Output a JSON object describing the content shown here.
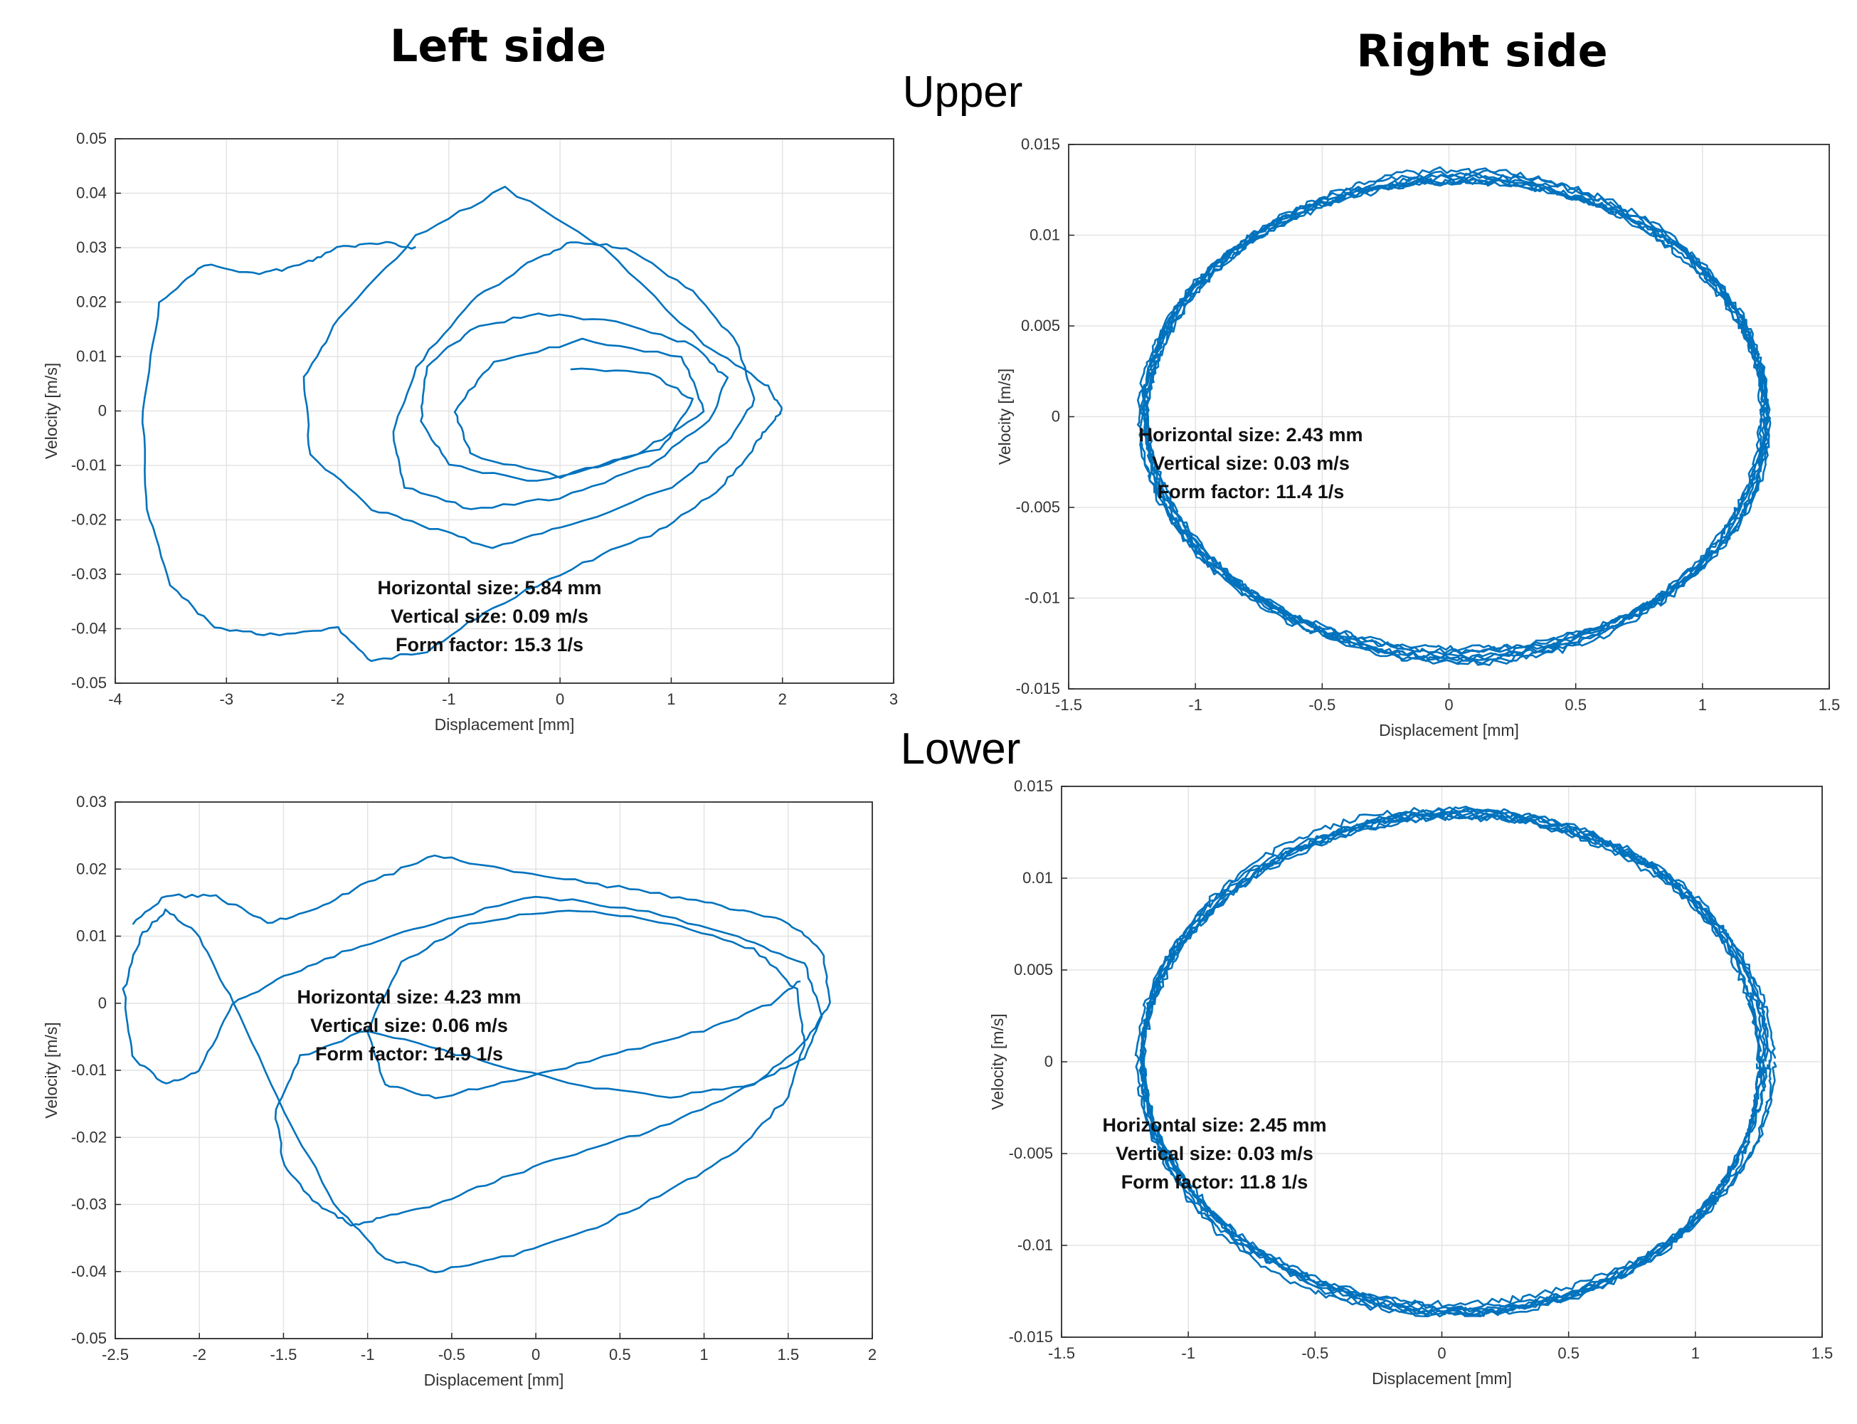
{
  "figure": {
    "left_title": "Left side",
    "right_title": "Right side",
    "upper_label": "Upper",
    "lower_label": "Lower"
  },
  "colors": {
    "trace": "#0072BD",
    "grid": "#e3e3e3",
    "axis": "#262626"
  },
  "chart_data": [
    {
      "id": "left-upper",
      "type": "line",
      "title": "",
      "xlabel": "Displacement [mm]",
      "ylabel": "Velocity [m/s]",
      "xlim": [
        -4,
        3
      ],
      "ylim": [
        -0.05,
        0.05
      ],
      "xticks": [
        -4,
        -3,
        -2,
        -1,
        0,
        1,
        2,
        3
      ],
      "yticks": [
        -0.05,
        -0.04,
        -0.03,
        -0.02,
        -0.01,
        0,
        0.01,
        0.02,
        0.03,
        0.04,
        0.05
      ],
      "xtick_labels": [
        "-4",
        "-3",
        "-2",
        "-1",
        "0",
        "1",
        "2",
        "3"
      ],
      "ytick_labels": [
        "-0.05",
        "-0.04",
        "-0.03",
        "-0.02",
        "-0.01",
        "0",
        "0.01",
        "0.02",
        "0.03",
        "0.04",
        "0.05"
      ],
      "grid": true,
      "annotation": [
        "Horizontal size: 5.84 mm",
        "Vertical size: 0.09 m/s",
        "Form factor: 15.3 1/s"
      ],
      "series": [
        {
          "name": "phase trajectory",
          "x": [
            -1.3,
            -1.6,
            -2.0,
            -2.3,
            -2.7,
            -3.2,
            -3.6,
            -3.75,
            -3.72,
            -3.5,
            -3.1,
            -2.6,
            -2.0,
            -1.7,
            -1.2,
            -0.6,
            0.2,
            0.9,
            1.4,
            1.7,
            1.9,
            2.0,
            1.85,
            1.3,
            0.4,
            -0.5,
            -1.3,
            -2.0,
            -2.3,
            -2.25,
            -1.7,
            -1.1,
            -0.6,
            0.1,
            1.0,
            1.5,
            1.75,
            1.6,
            1.2,
            0.6,
            0.1,
            -0.3,
            -0.8,
            -1.3,
            -1.5,
            -1.4,
            -0.8,
            0.0,
            0.8,
            1.35,
            1.5,
            1.2,
            0.6,
            -0.2,
            -0.8,
            -1.2,
            -1.25,
            -1.0,
            -0.2,
            0.7,
            1.3,
            1.1,
            0.2,
            -0.6,
            -0.95,
            -0.8,
            0.0,
            0.9,
            1.2,
            0.8,
            0.0
          ],
          "y": [
            0.03,
            0.031,
            0.03,
            0.027,
            0.025,
            0.027,
            0.02,
            0.0,
            -0.018,
            -0.032,
            -0.04,
            -0.041,
            -0.04,
            -0.046,
            -0.044,
            -0.036,
            -0.028,
            -0.022,
            -0.015,
            -0.008,
            -0.002,
            0.0,
            0.005,
            0.012,
            0.03,
            0.041,
            0.032,
            0.017,
            0.006,
            -0.008,
            -0.018,
            -0.022,
            -0.025,
            -0.021,
            -0.014,
            -0.006,
            0.002,
            0.012,
            0.022,
            0.03,
            0.031,
            0.027,
            0.02,
            0.008,
            -0.004,
            -0.014,
            -0.018,
            -0.016,
            -0.01,
            -0.002,
            0.006,
            0.012,
            0.016,
            0.018,
            0.015,
            0.008,
            -0.002,
            -0.01,
            -0.013,
            -0.008,
            0.0,
            0.01,
            0.013,
            0.009,
            0.0,
            -0.008,
            -0.012,
            -0.007,
            0.002,
            0.007,
            0.008
          ]
        }
      ]
    },
    {
      "id": "right-upper",
      "type": "line",
      "title": "",
      "xlabel": "Displacement [mm]",
      "ylabel": "Velocity [m/s]",
      "xlim": [
        -1.5,
        1.5
      ],
      "ylim": [
        -0.015,
        0.015
      ],
      "xticks": [
        -1.5,
        -1,
        -0.5,
        0,
        0.5,
        1,
        1.5
      ],
      "yticks": [
        -0.015,
        -0.01,
        -0.005,
        0,
        0.005,
        0.01,
        0.015
      ],
      "xtick_labels": [
        "-1.5",
        "-1",
        "-0.5",
        "0",
        "0.5",
        "1",
        "1.5"
      ],
      "ytick_labels": [
        "-0.015",
        "-0.01",
        "-0.005",
        "0",
        "0.005",
        "0.01",
        "0.015"
      ],
      "grid": true,
      "annotation": [
        "Horizontal size: 2.43 mm",
        "Vertical size: 0.03 m/s",
        "Form factor: 11.4 1/s"
      ],
      "ellipse": {
        "cx": 0.03,
        "cy": 0.0,
        "rx": 1.22,
        "ry": 0.0132,
        "loops": 8
      }
    },
    {
      "id": "left-lower",
      "type": "line",
      "title": "",
      "xlabel": "Displacement [mm]",
      "ylabel": "Velocity [m/s]",
      "xlim": [
        -2.5,
        2
      ],
      "ylim": [
        -0.05,
        0.03
      ],
      "xticks": [
        -2.5,
        -2,
        -1.5,
        -1,
        -0.5,
        0,
        0.5,
        1,
        1.5,
        2
      ],
      "yticks": [
        -0.05,
        -0.04,
        -0.03,
        -0.02,
        -0.01,
        0,
        0.01,
        0.02,
        0.03
      ],
      "xtick_labels": [
        "-2.5",
        "-2",
        "-1.5",
        "-1",
        "-0.5",
        "0",
        "0.5",
        "1",
        "1.5",
        "2"
      ],
      "ytick_labels": [
        "-0.05",
        "-0.04",
        "-0.03",
        "-0.02",
        "-0.01",
        "0",
        "0.01",
        "0.02",
        "0.03"
      ],
      "grid": true,
      "annotation": [
        "Horizontal size: 4.23 mm",
        "Vertical size: 0.06 m/s",
        "Form factor: 14.9 1/s"
      ],
      "series": [
        {
          "name": "phase trajectory",
          "x": [
            -2.4,
            -2.2,
            -1.9,
            -1.6,
            -1.3,
            -1.0,
            -0.6,
            -0.2,
            0.3,
            0.8,
            1.2,
            1.5,
            1.7,
            1.75,
            1.6,
            1.3,
            0.8,
            0.3,
            -0.2,
            -0.6,
            -0.9,
            -1.1,
            -1.3,
            -1.5,
            -1.55,
            -1.4,
            -1.0,
            -0.4,
            0.2,
            0.8,
            1.3,
            1.6,
            1.7,
            1.6,
            1.2,
            0.6,
            0.0,
            -0.6,
            -1.1,
            -1.5,
            -1.8,
            -2.0,
            -2.2,
            -2.4,
            -2.45,
            -2.35,
            -2.2,
            -2.0,
            -1.8,
            -1.5,
            -1.2,
            -0.9,
            -0.6,
            -0.2,
            0.3,
            0.8,
            1.2,
            1.5,
            1.6,
            1.55,
            1.3,
            0.8,
            0.2,
            -0.4,
            -0.8,
            -1.0,
            -0.9,
            -0.6,
            -0.2,
            0.4,
            1.0,
            1.4,
            1.6
          ],
          "y": [
            0.012,
            0.016,
            0.016,
            0.012,
            0.014,
            0.018,
            0.022,
            0.02,
            0.018,
            0.016,
            0.014,
            0.012,
            0.008,
            0.0,
            -0.006,
            -0.012,
            -0.018,
            -0.022,
            -0.026,
            -0.03,
            -0.032,
            -0.033,
            -0.03,
            -0.024,
            -0.016,
            -0.008,
            -0.004,
            -0.008,
            -0.012,
            -0.014,
            -0.012,
            -0.008,
            -0.002,
            0.006,
            0.01,
            0.014,
            0.016,
            0.012,
            0.008,
            0.004,
            0.0,
            -0.01,
            -0.012,
            -0.008,
            0.002,
            0.01,
            0.014,
            0.01,
            0.0,
            -0.016,
            -0.03,
            -0.038,
            -0.04,
            -0.038,
            -0.034,
            -0.028,
            -0.022,
            -0.014,
            -0.006,
            0.002,
            0.008,
            0.012,
            0.014,
            0.012,
            0.006,
            -0.004,
            -0.012,
            -0.014,
            -0.012,
            -0.008,
            -0.004,
            0.0,
            0.004
          ]
        }
      ]
    },
    {
      "id": "right-lower",
      "type": "line",
      "title": "",
      "xlabel": "Displacement [mm]",
      "ylabel": "Velocity [m/s]",
      "xlim": [
        -1.5,
        1.5
      ],
      "ylim": [
        -0.015,
        0.015
      ],
      "xticks": [
        -1.5,
        -1,
        -0.5,
        0,
        0.5,
        1,
        1.5
      ],
      "yticks": [
        -0.015,
        -0.01,
        -0.005,
        0,
        0.005,
        0.01,
        0.015
      ],
      "xtick_labels": [
        "-1.5",
        "-1",
        "-0.5",
        "0",
        "0.5",
        "1",
        "1.5"
      ],
      "ytick_labels": [
        "-0.015",
        "-0.01",
        "-0.005",
        "0",
        "0.005",
        "0.01",
        "0.015"
      ],
      "grid": true,
      "annotation": [
        "Horizontal size: 2.45 mm",
        "Vertical size: 0.03 m/s",
        "Form factor: 11.8 1/s"
      ],
      "ellipse": {
        "cx": 0.05,
        "cy": 0.0,
        "rx": 1.23,
        "ry": 0.0135,
        "loops": 8
      }
    }
  ]
}
